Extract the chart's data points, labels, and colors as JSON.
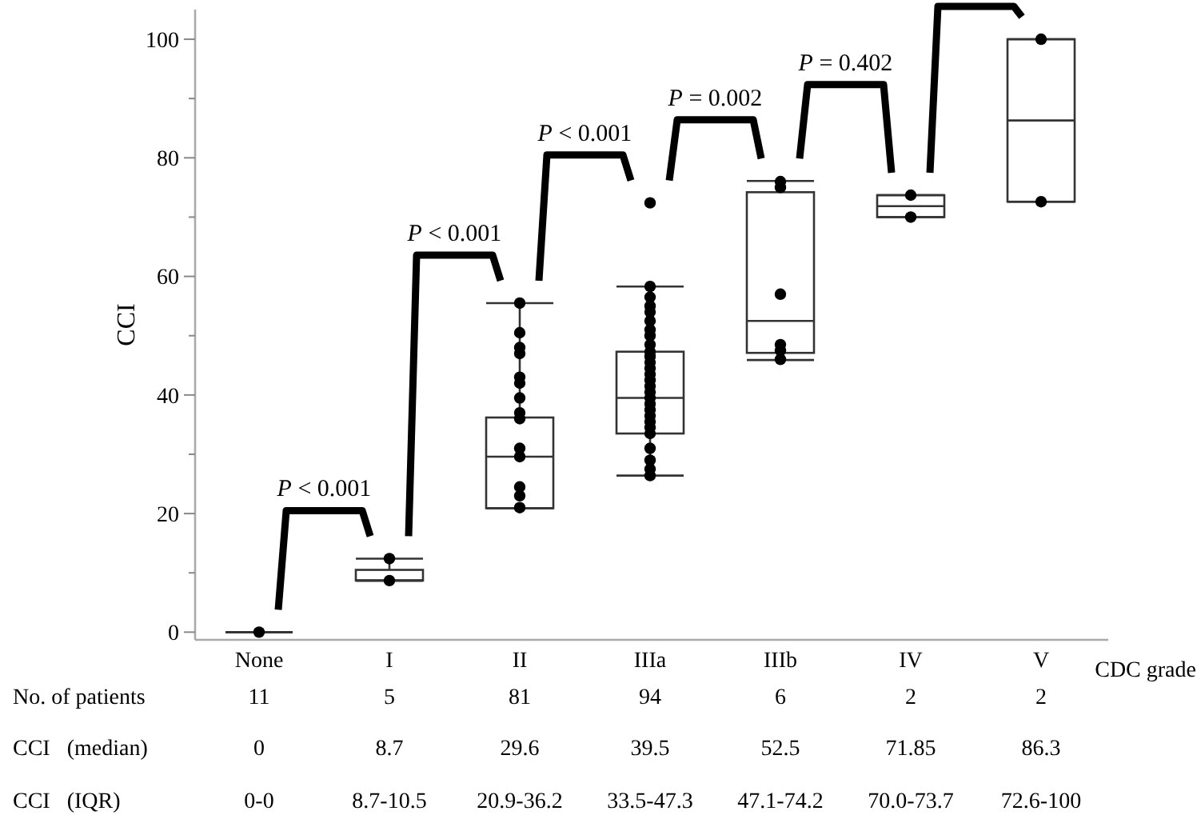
{
  "chart_data": {
    "type": "box",
    "ylabel": "CCI",
    "xlabel": "CDC grade",
    "categories": [
      "None",
      "I",
      "II",
      "IIIa",
      "IIIb",
      "IV",
      "V"
    ],
    "ylim": [
      -1.3,
      105
    ],
    "yticks": [
      0,
      {
        "value": 10,
        "label": null
      },
      20,
      {
        "value": 30,
        "label": null
      },
      40,
      {
        "value": 50,
        "label": null
      },
      60,
      {
        "value": 70,
        "label": null
      },
      80,
      {
        "value": 90,
        "label": null
      },
      100
    ],
    "grid": false,
    "boxes": [
      {
        "low": 0,
        "q1": 0,
        "median": 0,
        "q3": 0,
        "high": 0
      },
      {
        "low": 8.7,
        "q1": 8.7,
        "median": 8.7,
        "q3": 10.5,
        "high": 12.4
      },
      {
        "low": 20.9,
        "q1": 20.9,
        "median": 29.6,
        "q3": 36.2,
        "high": 55.5
      },
      {
        "low": 26.4,
        "q1": 33.5,
        "median": 39.5,
        "q3": 47.3,
        "high": 58.3
      },
      {
        "low": 45.9,
        "q1": 47.1,
        "median": 52.5,
        "q3": 74.2,
        "high": 76.1
      },
      {
        "low": 70.0,
        "q1": 70.0,
        "median": 71.85,
        "q3": 73.7,
        "high": 73.7
      },
      {
        "low": 72.6,
        "q1": 72.6,
        "median": 86.3,
        "q3": 100,
        "high": 100
      }
    ],
    "series": [
      {
        "type": "scatter",
        "color": "#000000",
        "marker": "circle",
        "x": [
          "None",
          "I",
          "I",
          "II",
          "II",
          "II",
          "II",
          "II",
          "II",
          "II",
          "II",
          "II",
          "II",
          "II",
          "II",
          "II",
          "II",
          "II",
          "IIIa",
          "IIIa",
          "IIIa",
          "IIIa",
          "IIIa",
          "IIIa",
          "IIIa",
          "IIIa",
          "IIIa",
          "IIIa",
          "IIIa",
          "IIIa",
          "IIIa",
          "IIIa",
          "IIIa",
          "IIIa",
          "IIIa",
          "IIIa",
          "IIIa",
          "IIIa",
          "IIIa",
          "IIIa",
          "IIIa",
          "IIIa",
          "IIIa",
          "IIIa",
          "IIIa",
          "IIIa",
          "IIIb",
          "IIIb",
          "IIIb",
          "IIIb",
          "IIIb",
          "IIIb",
          "IV",
          "IV",
          "V",
          "V"
        ],
        "values": [
          0,
          12.4,
          8.7,
          55.5,
          50.5,
          48,
          47,
          43,
          42,
          39.5,
          37,
          36,
          31,
          null,
          29.6,
          24.5,
          23,
          21,
          26.4,
          27.5,
          29,
          31,
          33.5,
          34.5,
          35.5,
          36.5,
          37.5,
          38.5,
          39.5,
          40.5,
          41.5,
          42.5,
          43.5,
          44.5,
          45.5,
          46.5,
          47.3,
          48.5,
          50,
          51,
          52.5,
          54,
          55,
          56.5,
          58.3,
          72.4,
          76,
          75,
          57,
          48.5,
          47.5,
          46,
          73.7,
          70.0,
          100,
          72.6
        ]
      }
    ],
    "annotations": [
      "P < 0.001",
      "P < 0.001",
      "P < 0.001",
      "P = 0.002",
      "P = 0.402",
      "No. of patients",
      "11",
      "5",
      "81",
      "94",
      "6",
      "2",
      "2",
      "CCI   (median)",
      "0",
      "8.7",
      "29.6",
      "39.5",
      "52.5",
      "71.85",
      "86.3",
      "CCI   (IQR)",
      "0-0",
      "8.7-10.5",
      "20.9-36.2",
      "33.5-47.3",
      "47.1-74.2",
      "70.0-73.7",
      "72.6-100"
    ]
  }
}
